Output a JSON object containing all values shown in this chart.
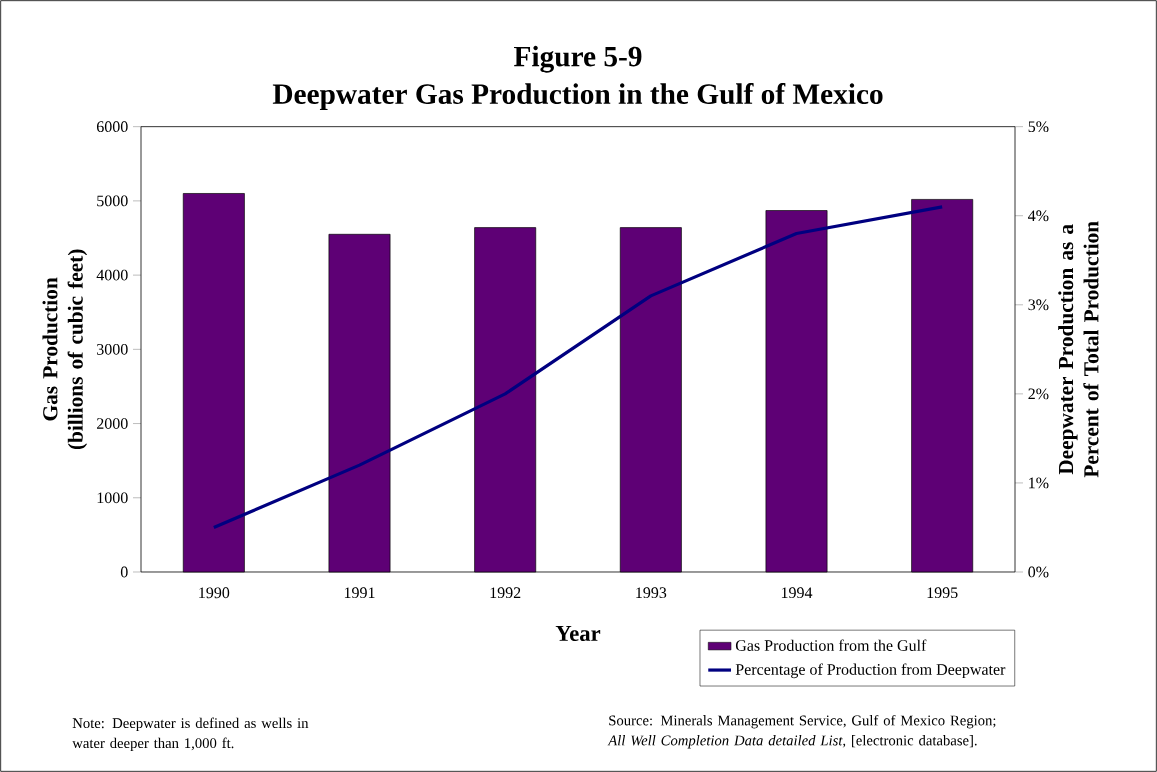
{
  "chart_data": {
    "type": "bar",
    "title": "Figure 5-9",
    "subtitle": "Deepwater Gas Production in the Gulf of Mexico",
    "xlabel": "Year",
    "ylabel": "Gas Production (billions of cubic feet)",
    "y2label": "Deepwater Production as a Percent of Total Production",
    "categories": [
      "1990",
      "1991",
      "1992",
      "1993",
      "1994",
      "1995"
    ],
    "series": [
      {
        "name": "Gas Production from the Gulf",
        "color": "#5e0075",
        "values": [
          5100,
          4550,
          4640,
          4640,
          4870,
          5020
        ]
      },
      {
        "name": "Percentage of Production from Deepwater",
        "type": "line",
        "axis": "y2",
        "color": "#000080",
        "values": [
          0.5,
          1.2,
          2.0,
          3.1,
          3.8,
          4.1
        ]
      }
    ],
    "ylim": [
      0,
      6000
    ],
    "yticks": [
      0,
      1000,
      2000,
      3000,
      4000,
      5000,
      6000
    ],
    "y2lim": [
      0,
      5
    ],
    "y2ticks": [
      {
        "value": 0,
        "label": "0%"
      },
      {
        "value": 1,
        "label": "1%"
      },
      {
        "value": 2,
        "label": "2%"
      },
      {
        "value": 3,
        "label": "3%"
      },
      {
        "value": 4,
        "label": "4%"
      },
      {
        "value": 5,
        "label": "5%"
      }
    ],
    "grid": false,
    "legend": "bottom right",
    "annotations": [
      "Note: Deepwater is defined as wells in water deeper than 1,000 ft.",
      "Source: Minerals Management Service, Gulf of Mexico Region; *All Well Completion Data detailed List,* [electronic database]."
    ]
  }
}
